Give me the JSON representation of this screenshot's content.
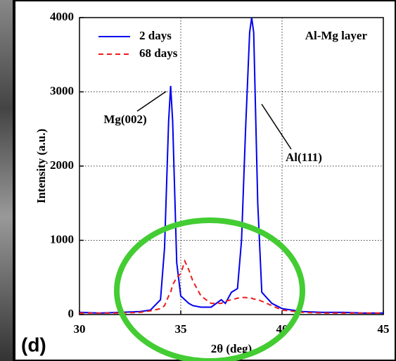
{
  "chart_data": {
    "type": "line",
    "title": "Al-Mg layer",
    "panel_label": "(d)",
    "x_label": "2θ (deg)",
    "y_label": "Intensity (a.u.)",
    "annotations": [
      "Mg(002)",
      "Al(111)"
    ],
    "x": [
      30,
      31,
      32,
      33,
      33.5,
      34,
      34.2,
      34.4,
      34.5,
      34.6,
      34.8,
      35,
      35.2,
      35.4,
      35.6,
      36,
      36.5,
      37,
      37.2,
      37.5,
      37.8,
      38,
      38.2,
      38.4,
      38.5,
      38.6,
      38.8,
      39,
      39.5,
      40,
      41,
      42,
      43,
      44,
      45
    ],
    "series": [
      {
        "name": "2 days",
        "color": "#0000ee",
        "dash": false,
        "values": [
          30,
          20,
          30,
          40,
          60,
          200,
          900,
          2600,
          3080,
          2600,
          700,
          250,
          200,
          150,
          120,
          100,
          100,
          200,
          150,
          300,
          350,
          1000,
          2500,
          3800,
          4000,
          3800,
          1500,
          300,
          150,
          80,
          40,
          30,
          30,
          20,
          20
        ]
      },
      {
        "name": "68 days",
        "color": "#ee1c1c",
        "dash": true,
        "values": [
          20,
          20,
          20,
          30,
          50,
          80,
          120,
          250,
          300,
          400,
          500,
          550,
          720,
          600,
          450,
          250,
          150,
          150,
          180,
          200,
          220,
          230,
          230,
          220,
          220,
          210,
          200,
          180,
          120,
          60,
          30,
          20,
          20,
          20,
          20
        ]
      }
    ],
    "xlim": [
      30,
      45
    ],
    "xticks": [
      30,
      35,
      40,
      45
    ],
    "ylim": [
      0,
      4000
    ],
    "yticks": [
      0,
      1000,
      2000,
      3000,
      4000
    ],
    "grid": true,
    "highlight_color": "#44cc33"
  }
}
